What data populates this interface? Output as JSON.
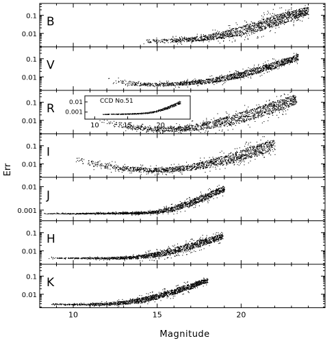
{
  "figure": {
    "xlabel": "Magnitude",
    "ylabel": "Err"
  },
  "chart_data": {
    "type": "scatter",
    "xlabel": "Magnitude",
    "ylabel": "Err",
    "xlim": [
      8,
      25
    ],
    "xticks": [
      10,
      15,
      20
    ],
    "shared_x": true,
    "yscale": "log",
    "panels": [
      {
        "label": "B",
        "ylim": [
          0.0018,
          0.45
        ],
        "yticks": [
          {
            "value": 0.01,
            "label": "0.01"
          },
          {
            "value": 0.1,
            "label": "0.1"
          }
        ],
        "envelope": {
          "mag": [
            14.0,
            15.0,
            16.0,
            17.0,
            18.0,
            19.0,
            20.0,
            21.0,
            22.0,
            23.0,
            24.0
          ],
          "err_low": [
            0.003,
            0.0031,
            0.0033,
            0.0036,
            0.0042,
            0.0055,
            0.008,
            0.013,
            0.024,
            0.05,
            0.11
          ],
          "err_high": [
            0.0048,
            0.005,
            0.0055,
            0.0065,
            0.009,
            0.014,
            0.025,
            0.05,
            0.1,
            0.18,
            0.3
          ]
        }
      },
      {
        "label": "V",
        "ylim": [
          0.0018,
          0.45
        ],
        "yticks": [
          {
            "value": 0.01,
            "label": "0.01"
          },
          {
            "value": 0.1,
            "label": "0.1"
          }
        ],
        "envelope": {
          "mag": [
            12.0,
            13.0,
            14.0,
            15.0,
            16.0,
            17.0,
            18.0,
            19.0,
            20.0,
            21.0,
            22.0,
            23.0,
            23.4
          ],
          "err_low": [
            0.0045,
            0.0038,
            0.0033,
            0.0032,
            0.0034,
            0.0038,
            0.0045,
            0.006,
            0.009,
            0.016,
            0.03,
            0.065,
            0.09
          ],
          "err_high": [
            0.009,
            0.0065,
            0.005,
            0.0048,
            0.0052,
            0.006,
            0.008,
            0.012,
            0.02,
            0.036,
            0.07,
            0.13,
            0.2
          ]
        }
      },
      {
        "label": "R",
        "ylim": [
          0.0018,
          0.45
        ],
        "yticks": [
          {
            "value": 0.01,
            "label": "0.01"
          },
          {
            "value": 0.1,
            "label": "0.1"
          }
        ],
        "envelope": {
          "mag": [
            11.5,
            12.5,
            13.5,
            14.5,
            15.5,
            16.5,
            17.5,
            18.5,
            19.5,
            20.5,
            21.5,
            22.5,
            23.3
          ],
          "err_low": [
            0.006,
            0.0045,
            0.0033,
            0.0025,
            0.0024,
            0.0026,
            0.003,
            0.004,
            0.006,
            0.01,
            0.019,
            0.04,
            0.08
          ],
          "err_high": [
            0.014,
            0.009,
            0.006,
            0.0045,
            0.0045,
            0.005,
            0.007,
            0.012,
            0.022,
            0.04,
            0.08,
            0.16,
            0.28
          ]
        }
      },
      {
        "label": "I",
        "ylim": [
          0.0018,
          0.45
        ],
        "yticks": [
          {
            "value": 0.01,
            "label": "0.01"
          },
          {
            "value": 0.1,
            "label": "0.1"
          }
        ],
        "envelope": {
          "mag": [
            10.0,
            11.0,
            12.0,
            13.0,
            14.0,
            15.0,
            16.0,
            17.0,
            18.0,
            19.0,
            20.0,
            21.0,
            22.0
          ],
          "err_low": [
            0.012,
            0.008,
            0.0055,
            0.0042,
            0.0036,
            0.0035,
            0.0038,
            0.0045,
            0.006,
            0.009,
            0.015,
            0.028,
            0.06
          ],
          "err_high": [
            0.025,
            0.016,
            0.011,
            0.008,
            0.0065,
            0.0062,
            0.007,
            0.01,
            0.016,
            0.03,
            0.06,
            0.12,
            0.22
          ]
        }
      },
      {
        "label": "J",
        "ylim": [
          0.00035,
          0.025
        ],
        "yticks": [
          {
            "value": 0.001,
            "label": "0.001"
          },
          {
            "value": 0.01,
            "label": "0.01"
          }
        ],
        "envelope": {
          "mag": [
            8.0,
            10.0,
            12.0,
            14.0,
            15.0,
            16.0,
            17.0,
            18.0,
            19.0
          ],
          "err_low": [
            0.0007,
            0.0007,
            0.0007,
            0.0007,
            0.00075,
            0.0009,
            0.0015,
            0.003,
            0.006
          ],
          "err_high": [
            0.00075,
            0.00075,
            0.0008,
            0.00085,
            0.001,
            0.0015,
            0.0028,
            0.0055,
            0.011
          ]
        }
      },
      {
        "label": "H",
        "ylim": [
          0.0018,
          0.45
        ],
        "yticks": [
          {
            "value": 0.01,
            "label": "0.01"
          },
          {
            "value": 0.1,
            "label": "0.1"
          }
        ],
        "envelope": {
          "mag": [
            8.5,
            10.0,
            12.0,
            13.0,
            14.0,
            15.0,
            16.0,
            17.0,
            18.0,
            18.9
          ],
          "err_low": [
            0.004,
            0.0038,
            0.0036,
            0.0036,
            0.0038,
            0.0045,
            0.007,
            0.012,
            0.024,
            0.045
          ],
          "err_high": [
            0.0045,
            0.0043,
            0.0045,
            0.005,
            0.006,
            0.009,
            0.015,
            0.028,
            0.055,
            0.085
          ]
        }
      },
      {
        "label": "K",
        "ylim": [
          0.0018,
          0.45
        ],
        "yticks": [
          {
            "value": 0.01,
            "label": "0.01"
          },
          {
            "value": 0.1,
            "label": "0.1"
          }
        ],
        "envelope": {
          "mag": [
            8.5,
            10.0,
            11.0,
            12.0,
            13.0,
            14.0,
            15.0,
            16.0,
            17.0,
            18.0
          ],
          "err_low": [
            0.0028,
            0.0026,
            0.0025,
            0.0025,
            0.0028,
            0.0035,
            0.0055,
            0.01,
            0.02,
            0.045
          ],
          "err_high": [
            0.0032,
            0.003,
            0.0032,
            0.0035,
            0.0045,
            0.0065,
            0.011,
            0.02,
            0.04,
            0.075
          ]
        }
      }
    ],
    "inset": {
      "panel": "R",
      "label": "CCD No.51",
      "xlim": [
        8.5,
        24.5
      ],
      "xticks": [
        10,
        15,
        20
      ],
      "ylim": [
        0.0002,
        0.04
      ],
      "yticks": [
        {
          "value": 0.001,
          "label": "0.001"
        },
        {
          "value": 0.01,
          "label": "0.01"
        }
      ],
      "envelope": {
        "mag": [
          11.0,
          13.0,
          15.0,
          17.0,
          18.0,
          19.0,
          20.0,
          21.0,
          22.0,
          23.0
        ],
        "err_low": [
          0.0006,
          0.0006,
          0.00062,
          0.00068,
          0.00075,
          0.0009,
          0.0013,
          0.002,
          0.0035,
          0.007
        ],
        "err_high": [
          0.0007,
          0.0007,
          0.00075,
          0.00085,
          0.001,
          0.0013,
          0.002,
          0.0035,
          0.0065,
          0.014
        ]
      }
    }
  }
}
